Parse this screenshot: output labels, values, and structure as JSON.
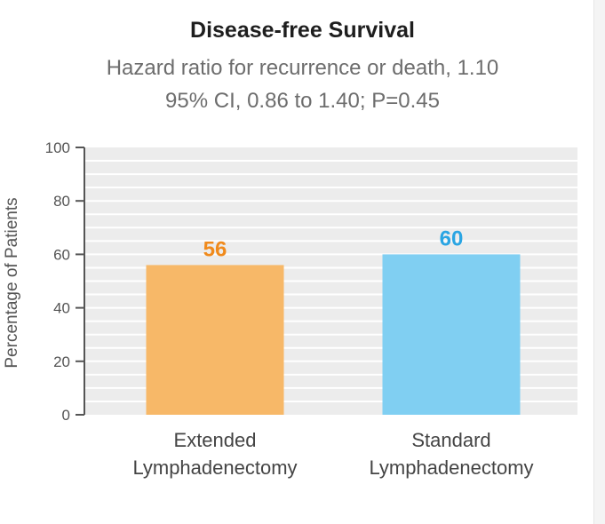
{
  "colors": {
    "extended": "#f7b868",
    "extended_label": "#f08a1c",
    "standard": "#80cff2",
    "standard_label": "#2aa5e3",
    "plot_background": "#ececec",
    "gridline": "#ffffff",
    "axis": "#555555"
  },
  "chart_data": {
    "type": "bar",
    "title": "Disease-free Survival",
    "subtitle_lines": [
      "Hazard ratio for recurrence or death, 1.10",
      "95% CI, 0.86 to 1.40; P=0.45"
    ],
    "categories": [
      [
        "Extended",
        "Lymphadenectomy"
      ],
      [
        "Standard",
        "Lymphadenectomy"
      ]
    ],
    "values": [
      56,
      60
    ],
    "data_labels": [
      "56",
      "60"
    ],
    "xlabel": "",
    "ylabel": "Percentage of Patients",
    "ylim": [
      0,
      100
    ],
    "yticks": [
      "0",
      "20",
      "40",
      "60",
      "80",
      "100"
    ],
    "grid": true,
    "legend": "none"
  }
}
